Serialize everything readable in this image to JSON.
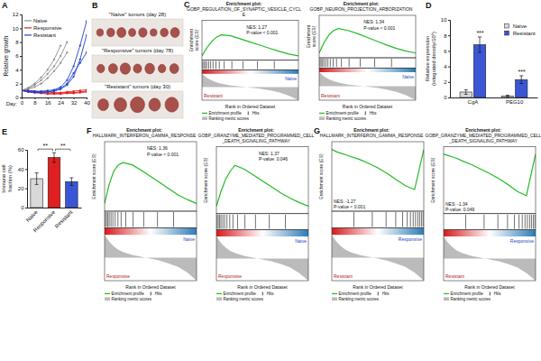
{
  "chart_data": [
    {
      "type": "line",
      "panel_label": "A",
      "x": [
        0,
        4,
        8,
        12,
        16,
        20,
        24,
        28,
        32,
        36,
        40
      ],
      "xlim": [
        0,
        40
      ],
      "xticks": [
        0,
        8,
        16,
        24,
        32,
        40
      ],
      "x_label": "Day:",
      "y_label": "Relative growth",
      "ylim": [
        0,
        12
      ],
      "yticks": [
        0,
        2,
        4,
        6,
        8,
        10,
        12
      ],
      "legend": "top-left",
      "marker": "circle",
      "series": [
        {
          "name": "Naive",
          "color": "#8c8c8c",
          "values": [
            [
              1,
              1.3,
              1.8,
              2.5,
              3.4,
              4.5,
              6,
              8,
              null,
              null,
              null
            ],
            [
              1,
              1.2,
              1.5,
              2,
              2.8,
              3.8,
              5,
              6.5,
              null,
              null,
              null
            ],
            [
              1,
              1.4,
              2,
              2.9,
              4,
              5.5,
              7.5,
              null,
              null,
              null,
              null
            ]
          ]
        },
        {
          "name": "Responsive",
          "color": "#e02020",
          "values": [
            [
              1,
              0.9,
              0.8,
              0.7,
              0.6,
              0.6,
              0.6,
              0.7,
              0.7,
              0.8,
              0.9
            ],
            [
              1,
              1,
              0.9,
              0.8,
              0.8,
              0.7,
              0.7,
              0.8,
              0.9,
              1,
              1.1
            ],
            [
              1,
              0.8,
              0.7,
              0.6,
              0.5,
              0.5,
              0.5,
              0.6,
              0.6,
              0.7,
              0.8
            ]
          ]
        },
        {
          "name": "Resistant",
          "color": "#2040d0",
          "values": [
            [
              1,
              0.9,
              0.8,
              0.8,
              0.8,
              0.9,
              1.2,
              1.8,
              3,
              5.5,
              9
            ],
            [
              1,
              1,
              0.9,
              0.9,
              1,
              1.1,
              1.5,
              2.5,
              4.5,
              7.5,
              11
            ],
            [
              1,
              0.8,
              0.7,
              0.7,
              0.8,
              1,
              1.3,
              2,
              3.5,
              5,
              6.5
            ]
          ]
        }
      ]
    },
    {
      "type": "image",
      "panel_label": "B",
      "groups": [
        {
          "label": "\"Naive\" tumors (day 28)",
          "count": 8
        },
        {
          "label": "\"Responsive\" tumors (day 78)",
          "count": 7
        },
        {
          "label": "\"Resistant\" tumors (day 30)",
          "count": 5
        }
      ]
    },
    {
      "type": "gsea",
      "panel_label": "C",
      "heading": "Enrichment plot:",
      "title": "GOBP_REGULATION_OF_SYNAPTIC_VESICLE_CYCLE",
      "nes_text": "NES: 1.27",
      "p_text": "P-value < 0.001",
      "color": "#22bb22",
      "x": [
        0,
        1000,
        2000,
        3000,
        4000,
        6000,
        8000,
        10000,
        12000,
        14000,
        16000,
        18000,
        20000
      ],
      "values": [
        0,
        0.18,
        0.32,
        0.42,
        0.47,
        0.45,
        0.38,
        0.31,
        0.24,
        0.17,
        0.1,
        0.04,
        0
      ],
      "xlim": [
        0,
        20000
      ],
      "ylim": [
        -0.1,
        0.8
      ],
      "hits": [
        150,
        400,
        700,
        1000,
        1400,
        1800,
        2300,
        2900,
        3600,
        4600,
        6200,
        8500,
        11500,
        15000
      ],
      "metric": [
        1,
        0.7,
        0.5,
        0.35,
        0.25,
        0.12,
        0.04,
        -0.04,
        -0.12,
        -0.25,
        -0.4,
        -0.65,
        -1
      ],
      "metric_ylim": [
        -1,
        1
      ],
      "group_labels": [
        "Resistant",
        "Naive"
      ],
      "x_label": "Rank in Ordered Dataset",
      "y_label": "Enrichment score (ES)",
      "legend_items": [
        "Enrichment profile",
        "Hits",
        "Ranking metric scores"
      ]
    },
    {
      "type": "gsea",
      "heading": "Enrichment plot:",
      "title": "GOBP_NEURON_PROJECTION_ARBORIZATION",
      "nes_text": "NES: 1.34",
      "p_text": "P-value < 0.001",
      "color": "#22bb22",
      "x": [
        0,
        1000,
        2000,
        3000,
        4000,
        6000,
        8000,
        10000,
        12000,
        14000,
        16000,
        18000,
        20000
      ],
      "values": [
        0,
        0.22,
        0.38,
        0.48,
        0.52,
        0.48,
        0.41,
        0.33,
        0.25,
        0.17,
        0.1,
        0.04,
        0
      ],
      "xlim": [
        0,
        20000
      ],
      "ylim": [
        -0.1,
        0.8
      ],
      "hits": [
        150,
        400,
        700,
        1000,
        1400,
        1800,
        2300,
        2900,
        3600,
        4600,
        6200,
        8500,
        11500,
        15000
      ],
      "metric": [
        1,
        0.7,
        0.5,
        0.35,
        0.25,
        0.12,
        0.04,
        -0.04,
        -0.12,
        -0.25,
        -0.4,
        -0.65,
        -1
      ],
      "metric_ylim": [
        -1,
        1
      ],
      "group_labels": [
        "Resistant",
        "Naive"
      ],
      "x_label": "Rank in Ordered Dataset",
      "y_label": "Enrichment score (ES)",
      "legend_items": [
        "Enrichment profile",
        "Hits",
        "Ranking metric scores"
      ]
    },
    {
      "type": "bar",
      "panel_label": "D",
      "categories": [
        "CgA",
        "PEG10"
      ],
      "series": [
        {
          "name": "Naive",
          "color": "#d9d9d9",
          "values": [
            0.7,
            0.2
          ],
          "errors": [
            0.3,
            0.1
          ]
        },
        {
          "name": "Resistant",
          "color": "#3a56d4",
          "values": [
            6.8,
            2.3
          ],
          "errors": [
            1.0,
            0.5
          ]
        }
      ],
      "ylim": [
        0,
        10
      ],
      "yticks": [
        0,
        2,
        4,
        6,
        8,
        10
      ],
      "y_label": "Relative expression (integrated density/10⁵)",
      "legend": "top-right",
      "significance": [
        "***",
        "***"
      ]
    },
    {
      "type": "bar",
      "panel_label": "E",
      "categories": [
        "Naive",
        "Responsive",
        "Resistant"
      ],
      "values": [
        30,
        52,
        27
      ],
      "errors": [
        6,
        5,
        4
      ],
      "colors": [
        "#d9d9d9",
        "#e02020",
        "#3a56d4"
      ],
      "ylim": [
        0,
        60
      ],
      "yticks": [
        0,
        20,
        40,
        60
      ],
      "y_label": "Immune cell fraction (%)",
      "comparisons": [
        {
          "pair": [
            "Naive",
            "Responsive"
          ],
          "label": "**"
        },
        {
          "pair": [
            "Responsive",
            "Resistant"
          ],
          "label": "**"
        }
      ]
    },
    {
      "type": "gsea",
      "panel_label": "F",
      "heading": "Enrichment plot:",
      "title": "HALLMARK_INTERFERON_GAMMA_RESPONSE",
      "nes_text": "NES: 1.36",
      "p_text": "P-value < 0.001",
      "color": "#22bb22",
      "x": [
        0,
        1000,
        2000,
        3000,
        4000,
        6000,
        8000,
        10000,
        12000,
        14000,
        16000,
        18000,
        20000
      ],
      "values": [
        0,
        0.25,
        0.42,
        0.5,
        0.53,
        0.5,
        0.43,
        0.35,
        0.27,
        0.19,
        0.11,
        0.05,
        0
      ],
      "xlim": [
        0,
        20000
      ],
      "ylim": [
        -0.1,
        0.8
      ],
      "hits": [
        150,
        400,
        700,
        1000,
        1400,
        1800,
        2300,
        2900,
        3600,
        4600,
        6200,
        8500,
        11500,
        15000
      ],
      "metric": [
        1,
        0.7,
        0.5,
        0.35,
        0.25,
        0.12,
        0.04,
        -0.04,
        -0.12,
        -0.25,
        -0.4,
        -0.65,
        -1
      ],
      "metric_ylim": [
        -1,
        1
      ],
      "group_labels": [
        "Responsive",
        "Naive"
      ],
      "x_label": "Rank in Ordered Dataset",
      "y_label": "Enrichment score (ES)",
      "legend_items": [
        "Enrichment profile",
        "Hits",
        "Ranking metric scores"
      ]
    },
    {
      "type": "gsea",
      "heading": "Enrichment plot:",
      "title": "GOBP_GRANZYME_MEDIATED_PROGRAMMED_CELL_DEATH_SIGNALING_PATHWAY",
      "nes_text": "NES: 1.37",
      "p_text": "P-value: 0.046",
      "color": "#22bb22",
      "x": [
        0,
        1000,
        2000,
        3000,
        4000,
        6000,
        8000,
        10000,
        12000,
        14000,
        16000,
        18000,
        20000
      ],
      "values": [
        0,
        0.2,
        0.36,
        0.47,
        0.55,
        0.5,
        0.42,
        0.34,
        0.26,
        0.18,
        0.11,
        0.05,
        0
      ],
      "xlim": [
        0,
        20000
      ],
      "ylim": [
        -0.1,
        0.8
      ],
      "hits": [
        150,
        400,
        700,
        1000,
        1400,
        1800,
        2300,
        2900,
        3600,
        4600,
        6200,
        8500,
        11500,
        15000
      ],
      "metric": [
        1,
        0.7,
        0.5,
        0.35,
        0.25,
        0.12,
        0.04,
        -0.04,
        -0.12,
        -0.25,
        -0.4,
        -0.65,
        -1
      ],
      "metric_ylim": [
        -1,
        1
      ],
      "group_labels": [
        "Responsive",
        "Naive"
      ],
      "x_label": "Rank in Ordered Dataset",
      "y_label": "Enrichment score (ES)",
      "legend_items": [
        "Enrichment profile",
        "Hits",
        "Ranking metric scores"
      ]
    },
    {
      "type": "gsea",
      "panel_label": "G",
      "heading": "Enrichment plot:",
      "title": "HALLMARK_INTERFERON_GAMMA_RESPONSE",
      "nes_text": "NES: -1.27",
      "p_text": "P-value < 0.001",
      "color": "#22bb22",
      "x": [
        0,
        1000,
        2000,
        3000,
        4000,
        6000,
        8000,
        10000,
        12000,
        14000,
        16000,
        18000,
        20000
      ],
      "values": [
        0,
        -0.03,
        -0.05,
        -0.07,
        -0.09,
        -0.13,
        -0.18,
        -0.24,
        -0.31,
        -0.39,
        -0.47,
        -0.52,
        0
      ],
      "xlim": [
        0,
        20000
      ],
      "ylim": [
        -0.8,
        0.1
      ],
      "hits": [
        4800,
        8800,
        11800,
        13900,
        15400,
        16400,
        17100,
        17700,
        18200,
        18700,
        19100,
        19500,
        19850
      ],
      "metric": [
        1,
        0.7,
        0.5,
        0.35,
        0.25,
        0.12,
        0.04,
        -0.04,
        -0.12,
        -0.25,
        -0.4,
        -0.65,
        -1
      ],
      "metric_ylim": [
        -1,
        1
      ],
      "group_labels": [
        "Resistant",
        "Responsive"
      ],
      "x_label": "Rank in Ordered Dataset",
      "y_label": "Enrichment score (ES)",
      "legend_items": [
        "Enrichment profile",
        "Hits",
        "Ranking metric scores"
      ]
    },
    {
      "type": "gsea",
      "heading": "Enrichment plot:",
      "title": "GOBP_GRANZYME_MEDIATED_PROGRAMMED_CELL_DEATH_SIGNALING_PATHWAY",
      "nes_text": "NES: -1.34",
      "p_text": "P-value: 0.049",
      "color": "#22bb22",
      "x": [
        0,
        1000,
        2000,
        3000,
        4000,
        6000,
        8000,
        10000,
        12000,
        14000,
        16000,
        18000,
        20000
      ],
      "values": [
        0,
        -0.02,
        -0.04,
        -0.06,
        -0.09,
        -0.14,
        -0.2,
        -0.26,
        -0.33,
        -0.41,
        -0.5,
        -0.56,
        0
      ],
      "xlim": [
        0,
        20000
      ],
      "ylim": [
        -0.8,
        0.1
      ],
      "hits": [
        4800,
        8800,
        11800,
        13900,
        15400,
        16400,
        17100,
        17700,
        18200,
        18700,
        19100,
        19500,
        19850
      ],
      "metric": [
        1,
        0.7,
        0.5,
        0.35,
        0.25,
        0.12,
        0.04,
        -0.04,
        -0.12,
        -0.25,
        -0.4,
        -0.65,
        -1
      ],
      "metric_ylim": [
        -1,
        1
      ],
      "group_labels": [
        "Resistant",
        "Responsive"
      ],
      "x_label": "Rank in Ordered Dataset",
      "y_label": "Enrichment score (ES)",
      "legend_items": [
        "Enrichment profile",
        "Hits",
        "Ranking metric scores"
      ]
    }
  ]
}
